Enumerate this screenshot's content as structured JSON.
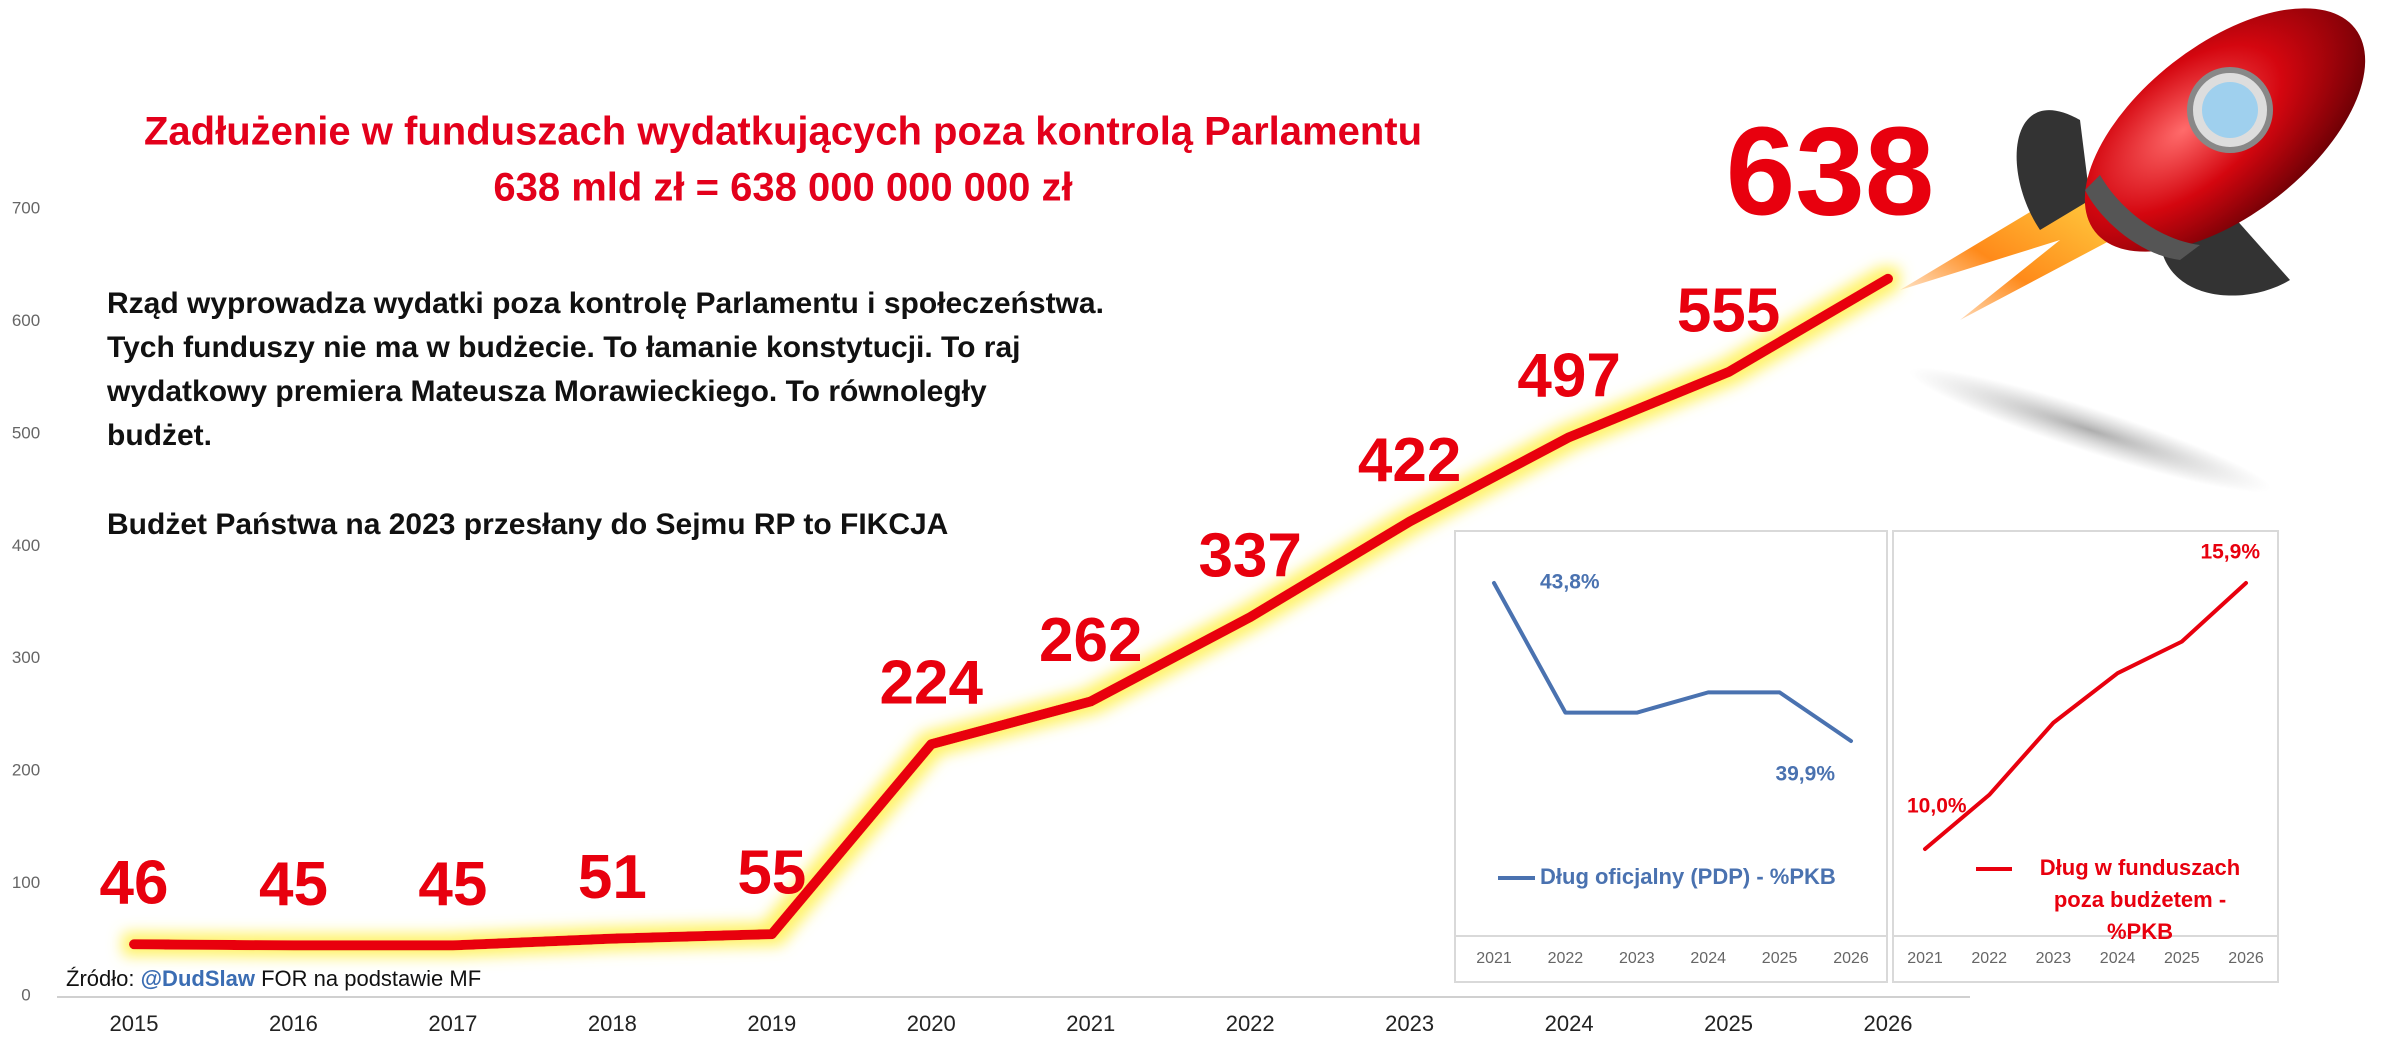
{
  "chart_data": [
    {
      "type": "line",
      "title": "Zadłużenie w funduszach wydatkujących poza kontrolą Parlamentu",
      "subtitle": "638 mld zł = 638 000 000 000 zł",
      "categories": [
        "2015",
        "2016",
        "2017",
        "2018",
        "2019",
        "2020",
        "2021",
        "2022",
        "2023",
        "2024",
        "2025",
        "2026"
      ],
      "values": [
        46,
        45,
        45,
        51,
        55,
        224,
        262,
        337,
        422,
        497,
        555,
        638
      ],
      "color": "#e8000e",
      "ylim": [
        0,
        700
      ],
      "yticks": [
        0,
        100,
        200,
        300,
        400,
        500,
        600,
        700
      ],
      "grid": false
    },
    {
      "type": "line",
      "categories": [
        "2021",
        "2022",
        "2023",
        "2024",
        "2025",
        "2026"
      ],
      "series": [
        {
          "name": "Dług oficjalny (PDP) - %PKB",
          "color": "#4a72b0",
          "values": [
            43.8,
            40.6,
            40.6,
            41.1,
            41.1,
            39.9
          ],
          "value_labels": [
            "43,8%",
            null,
            null,
            null,
            null,
            "39,9%"
          ]
        }
      ]
    },
    {
      "type": "line",
      "categories": [
        "2021",
        "2022",
        "2023",
        "2024",
        "2025",
        "2026"
      ],
      "series": [
        {
          "name": "Dług w funduszach poza budżetem - %PKB",
          "color": "#e8000e",
          "values": [
            10.0,
            11.2,
            12.8,
            13.9,
            14.6,
            15.9
          ],
          "value_labels": [
            "10,0%",
            null,
            null,
            null,
            null,
            "15,9%"
          ]
        }
      ]
    }
  ],
  "text": {
    "paragraph_1": [
      "Rząd wyprowadza wydatki poza kontrolę Parlamentu i społeczeństwa.",
      "Tych funduszy nie ma w budżecie. To łamanie konstytucji. To raj",
      "wydatkowy premiera Mateusza Morawieckiego. To równoległy",
      "budżet."
    ],
    "paragraph_2": "Budżet Państwa na 2023 przesłany do Sejmu RP to FIKCJA",
    "source": {
      "prefix": "Źródło:",
      "handle": "@DudSlaw",
      "suffix": "FOR na podstawie MF"
    }
  }
}
